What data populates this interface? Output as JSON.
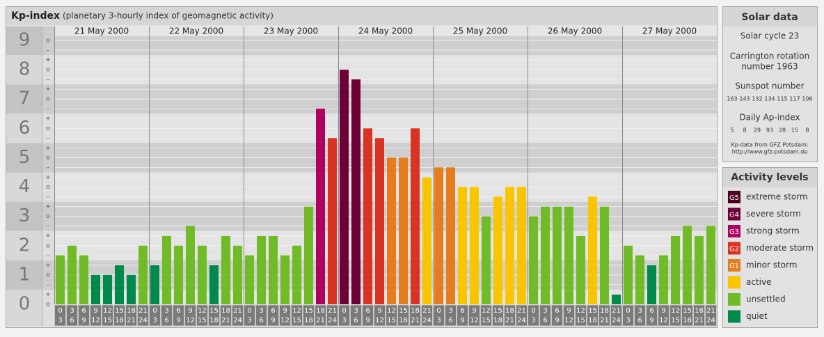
{
  "chart_data": {
    "type": "bar",
    "title": "Kp-index",
    "subtitle": "(planetary 3-hourly index of geomagnetic activity)",
    "days": [
      "21 May 2000",
      "22 May 2000",
      "23 May 2000",
      "24 May 2000",
      "25 May 2000",
      "26 May 2000",
      "27 May 2000"
    ],
    "hours": [
      [
        0,
        3
      ],
      [
        3,
        6
      ],
      [
        6,
        9
      ],
      [
        9,
        12
      ],
      [
        12,
        15
      ],
      [
        15,
        18
      ],
      [
        18,
        21
      ],
      [
        21,
        24
      ]
    ],
    "values": [
      1.67,
      2,
      1.67,
      1,
      1,
      1.33,
      1,
      2,
      1.33,
      2.33,
      2,
      2.67,
      2,
      1.33,
      2.33,
      2,
      1.67,
      2.33,
      2.33,
      1.67,
      2,
      3.33,
      6.67,
      5.67,
      8,
      7.67,
      6,
      5.67,
      5,
      5,
      6,
      4.33,
      4.67,
      4.67,
      4,
      4,
      3,
      3.67,
      4,
      4,
      3,
      3.33,
      3.33,
      3.33,
      2.33,
      3.67,
      3.33,
      0.33,
      2,
      1.67,
      1.33,
      1.67,
      2.33,
      2.67,
      2.33,
      2.67
    ],
    "colors": [
      "#72bb28",
      "#72bb28",
      "#72bb28",
      "#008a4a",
      "#008a4a",
      "#008a4a",
      "#008a4a",
      "#72bb28",
      "#008a4a",
      "#72bb28",
      "#72bb28",
      "#72bb28",
      "#72bb28",
      "#008a4a",
      "#72bb28",
      "#72bb28",
      "#72bb28",
      "#72bb28",
      "#72bb28",
      "#72bb28",
      "#72bb28",
      "#72bb28",
      "#b0005f",
      "#d93324",
      "#6e0038",
      "#6e0038",
      "#d93324",
      "#d93324",
      "#e57d1e",
      "#e57d1e",
      "#d93324",
      "#f9c500",
      "#e57d1e",
      "#e57d1e",
      "#f9c500",
      "#f9c500",
      "#72bb28",
      "#f9c500",
      "#f9c500",
      "#f9c500",
      "#72bb28",
      "#72bb28",
      "#72bb28",
      "#72bb28",
      "#72bb28",
      "#f9c500",
      "#72bb28",
      "#008a4a",
      "#72bb28",
      "#72bb28",
      "#008a4a",
      "#72bb28",
      "#72bb28",
      "#72bb28",
      "#72bb28",
      "#72bb28"
    ],
    "ylim": [
      0,
      9
    ],
    "yticks": [
      0,
      1,
      2,
      3,
      4,
      5,
      6,
      7,
      8,
      9
    ],
    "minor_labels": {
      "zero": "o",
      "plus": "+",
      "minus": "–"
    },
    "grid": true
  },
  "solar_data": {
    "title": "Solar data",
    "cycle": "Solar cycle 23",
    "carrington": [
      "Carrington rotation",
      "number 1963"
    ],
    "sunspot_label": "Sunspot number",
    "sunspot_numbers": [
      163,
      143,
      132,
      134,
      115,
      117,
      106
    ],
    "ap_label": "Daily Ap-index",
    "ap_index": [
      5,
      8,
      29,
      93,
      28,
      15,
      8
    ],
    "source": [
      "Kp-data from GFZ Potsdam:",
      "http://www.gfz-potsdam.de"
    ]
  },
  "activity_levels": {
    "title": "Activity levels",
    "levels": [
      {
        "badge": "G5",
        "label": "extreme storm",
        "color": "#4b0020"
      },
      {
        "badge": "G4",
        "label": "severe storm",
        "color": "#6e0038"
      },
      {
        "badge": "G3",
        "label": "strong storm",
        "color": "#b0005f"
      },
      {
        "badge": "G2",
        "label": "moderate storm",
        "color": "#d93324"
      },
      {
        "badge": "G1",
        "label": "minor storm",
        "color": "#e57d1e"
      },
      {
        "badge": null,
        "label": "active",
        "color": "#f9c500"
      },
      {
        "badge": null,
        "label": "unsettled",
        "color": "#72bb28"
      },
      {
        "badge": null,
        "label": "quiet",
        "color": "#008a4a"
      }
    ]
  }
}
